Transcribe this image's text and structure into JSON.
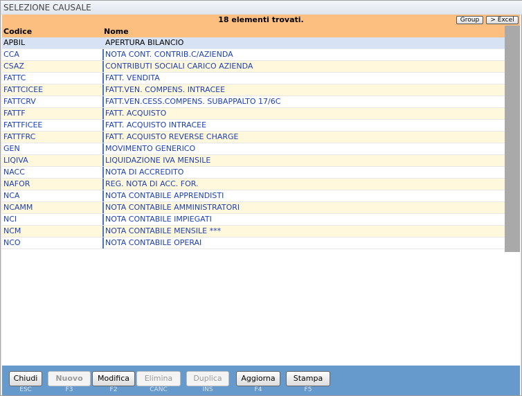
{
  "title": "SELEZIONE CAUSALE",
  "info": "18 elementi trovati.",
  "group_label": "Group",
  "excel_label": "> Excel",
  "columns": [
    "Codice",
    "Nome"
  ],
  "rows": [
    {
      "code": "APBIL",
      "name": "APERTURA BILANCIO"
    },
    {
      "code": "CCA",
      "name": "NOTA CONT. CONTRIB.C/AZIENDA"
    },
    {
      "code": "CSAZ",
      "name": "CONTRIBUTI SOCIALI CARICO AZIENDA"
    },
    {
      "code": "FATTC",
      "name": "FATT. VENDITA"
    },
    {
      "code": "FATTCICEE",
      "name": "FATT.VEN. COMPENS. INTRACEE"
    },
    {
      "code": "FATTCRV",
      "name": "FATT.VEN.CESS.COMPENS. SUBAPPALTO 17/6C"
    },
    {
      "code": "FATTF",
      "name": "FATT. ACQUISTO"
    },
    {
      "code": "FATTFICEE",
      "name": "FATT. ACQUISTO INTRACEE"
    },
    {
      "code": "FATTFRC",
      "name": "FATT. ACQUISTO REVERSE CHARGE"
    },
    {
      "code": "GEN",
      "name": "MOVIMENTO GENERICO"
    },
    {
      "code": "LIQIVA",
      "name": "LIQUIDAZIONE IVA MENSILE"
    },
    {
      "code": "NACC",
      "name": "NOTA DI ACCREDITO"
    },
    {
      "code": "NAFOR",
      "name": "REG. NOTA DI ACC. FOR."
    },
    {
      "code": "NCA",
      "name": "NOTA CONTABILE APPRENDISTI"
    },
    {
      "code": "NCAMM",
      "name": "NOTA CONTABILE AMMINISTRATORI"
    },
    {
      "code": "NCI",
      "name": "NOTA CONTABILE IMPIEGATI"
    },
    {
      "code": "NCM",
      "name": "NOTA CONTABILE MENSILE ***"
    },
    {
      "code": "NCO",
      "name": "NOTA CONTABILE OPERAI"
    }
  ],
  "buttons": [
    {
      "label": "Chiudi",
      "key": "ESC",
      "enabled": true
    },
    {
      "label": "Nuovo",
      "key": "F3",
      "enabled": false
    },
    {
      "label": "Modifica",
      "key": "F2",
      "enabled": true
    },
    {
      "label": "Elimina",
      "key": "CANC",
      "enabled": false
    },
    {
      "label": "Duplica",
      "key": "INS",
      "enabled": false
    },
    {
      "label": "Aggiorna",
      "key": "F4",
      "enabled": true
    },
    {
      "label": "Stampa",
      "key": "F5",
      "enabled": true
    }
  ]
}
